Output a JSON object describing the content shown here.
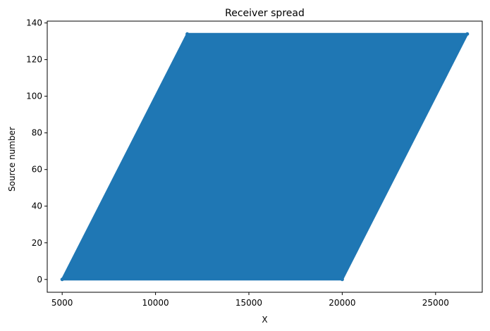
{
  "chart_data": {
    "type": "scatter",
    "title": "Receiver spread",
    "xlabel": "X",
    "ylabel": "Source number",
    "xlim": [
      4200,
      27500
    ],
    "ylim": [
      -7,
      141
    ],
    "xticks": [
      5000,
      10000,
      15000,
      20000,
      25000
    ],
    "yticks": [
      0,
      20,
      40,
      60,
      80,
      100,
      120,
      140
    ],
    "grid": false,
    "legend": "none",
    "series_color": "#1f77b4",
    "source_range": [
      0,
      134
    ],
    "receiver_x_first_source": [
      5000,
      20000
    ],
    "receiver_x_last_source": [
      11700,
      26700
    ],
    "point_style": "filled marker, densely overlapping",
    "series": [
      {
        "description_points": [
          {
            "x": 5000,
            "y": 0
          },
          {
            "x": 20000,
            "y": 0
          },
          {
            "x": 26700,
            "y": 134
          },
          {
            "x": 11700,
            "y": 134
          }
        ]
      }
    ]
  }
}
